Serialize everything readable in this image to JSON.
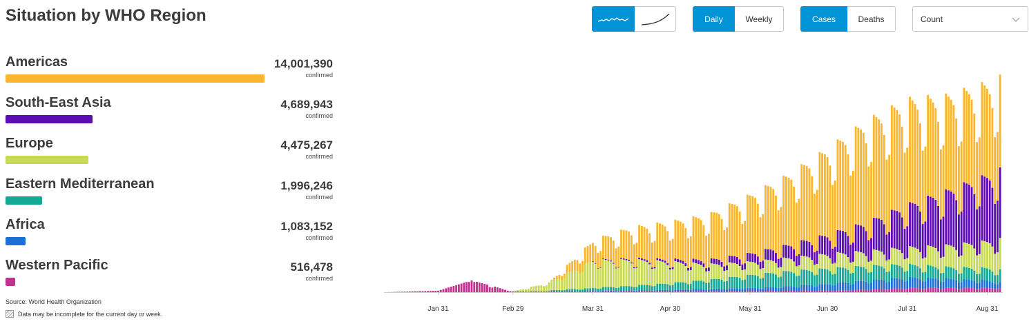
{
  "title": "Situation by WHO Region",
  "regions": [
    {
      "name": "Americas",
      "count": "14,001,390",
      "value": 14001390,
      "unit": "confirmed",
      "color": "#fbb630"
    },
    {
      "name": "South-East Asia",
      "count": "4,689,943",
      "value": 4689943,
      "unit": "confirmed",
      "color": "#5b0cb2"
    },
    {
      "name": "Europe",
      "count": "4,475,267",
      "value": 4475267,
      "unit": "confirmed",
      "color": "#c7d957"
    },
    {
      "name": "Eastern Mediterranean",
      "count": "1,996,246",
      "value": 1996246,
      "unit": "confirmed",
      "color": "#15a894"
    },
    {
      "name": "Africa",
      "count": "1,083,152",
      "value": 1083152,
      "unit": "confirmed",
      "color": "#1c6fd6"
    },
    {
      "name": "Western Pacific",
      "count": "516,478",
      "value": 516478,
      "unit": "confirmed",
      "color": "#c3318f"
    }
  ],
  "source": "Source:  World Health Organization",
  "note": "Data may be incomplete for the current day or week.",
  "controls": {
    "chart_style": {
      "options": [
        "line-icon",
        "cumulative-icon"
      ],
      "selected": "line-icon"
    },
    "period": {
      "options": [
        "Daily",
        "Weekly"
      ],
      "selected": "Daily"
    },
    "metric": {
      "options": [
        "Cases",
        "Deaths"
      ],
      "selected": "Cases"
    },
    "scale": {
      "value": "Count"
    }
  },
  "accent_color": "#0093d5",
  "chart_data": {
    "type": "bar",
    "stacked": true,
    "x_tick_labels": [
      "Jan 31",
      "Feb 29",
      "Mar 31",
      "Apr 30",
      "May 31",
      "Jun 30",
      "Jul 31",
      "Aug 31"
    ],
    "x_tick_dates": [
      "2020-01-31",
      "2020-02-29",
      "2020-03-31",
      "2020-04-30",
      "2020-05-31",
      "2020-06-30",
      "2020-07-31",
      "2020-08-31"
    ],
    "x_range": [
      "2020-01-11",
      "2020-09-05"
    ],
    "ylim": [
      0,
      300000
    ],
    "grid": false,
    "key_values": [
      {
        "date": "2020-01-11",
        "Western Pacific": 0
      },
      {
        "date": "2020-01-31",
        "Western Pacific": 1900
      },
      {
        "date": "2020-02-13",
        "Western Pacific": 15000
      },
      {
        "date": "2020-02-29",
        "Western Pacific": 900,
        "Europe": 300
      },
      {
        "date": "2020-03-15",
        "Americas": 1500,
        "Europe": 12000,
        "Eastern Mediterranean": 1400,
        "Western Pacific": 1200
      },
      {
        "date": "2020-03-31",
        "Americas": 25000,
        "Europe": 36000,
        "Eastern Mediterranean": 4000,
        "Africa": 500,
        "South-East Asia": 600,
        "Western Pacific": 1300
      },
      {
        "date": "2020-04-15",
        "Americas": 40000,
        "Europe": 34000,
        "Eastern Mediterranean": 6000,
        "Africa": 900,
        "South-East Asia": 1600,
        "Western Pacific": 1600
      },
      {
        "date": "2020-04-30",
        "Americas": 48000,
        "Europe": 28000,
        "Eastern Mediterranean": 9000,
        "Africa": 1500,
        "South-East Asia": 3000,
        "Western Pacific": 1500
      },
      {
        "date": "2020-05-15",
        "Americas": 58000,
        "Europe": 20000,
        "Eastern Mediterranean": 12000,
        "Africa": 3000,
        "South-East Asia": 6000,
        "Western Pacific": 1500
      },
      {
        "date": "2020-05-31",
        "Americas": 75000,
        "Europe": 17000,
        "Eastern Mediterranean": 17000,
        "Africa": 4000,
        "South-East Asia": 11000,
        "Western Pacific": 1600
      },
      {
        "date": "2020-06-15",
        "Americas": 90000,
        "Europe": 17000,
        "Eastern Mediterranean": 20000,
        "Africa": 6000,
        "South-East Asia": 17000,
        "Western Pacific": 1800
      },
      {
        "date": "2020-06-30",
        "Americas": 110000,
        "Europe": 19000,
        "Eastern Mediterranean": 20000,
        "Africa": 9000,
        "South-East Asia": 25000,
        "Western Pacific": 2000
      },
      {
        "date": "2020-07-15",
        "Americas": 130000,
        "Europe": 19000,
        "Eastern Mediterranean": 19000,
        "Africa": 12000,
        "South-East Asia": 37000,
        "Western Pacific": 3500
      },
      {
        "date": "2020-07-31",
        "Americas": 135000,
        "Europe": 22000,
        "Eastern Mediterranean": 17000,
        "Africa": 14000,
        "South-East Asia": 55000,
        "Western Pacific": 5500
      },
      {
        "date": "2020-08-15",
        "Americas": 122000,
        "Europe": 28000,
        "Eastern Mediterranean": 15000,
        "Africa": 12000,
        "South-East Asia": 70000,
        "Western Pacific": 6000
      },
      {
        "date": "2020-08-31",
        "Americas": 118000,
        "Europe": 35000,
        "Eastern Mediterranean": 16000,
        "Africa": 10000,
        "South-East Asia": 85000,
        "Western Pacific": 5500
      },
      {
        "date": "2020-09-05",
        "Americas": 118000,
        "Europe": 40000,
        "Eastern Mediterranean": 16000,
        "Africa": 8000,
        "South-East Asia": 90000,
        "Western Pacific": 5000
      }
    ],
    "weekly_pattern": [
      1.0,
      0.98,
      0.96,
      0.93,
      0.86,
      0.72,
      0.74
    ]
  }
}
